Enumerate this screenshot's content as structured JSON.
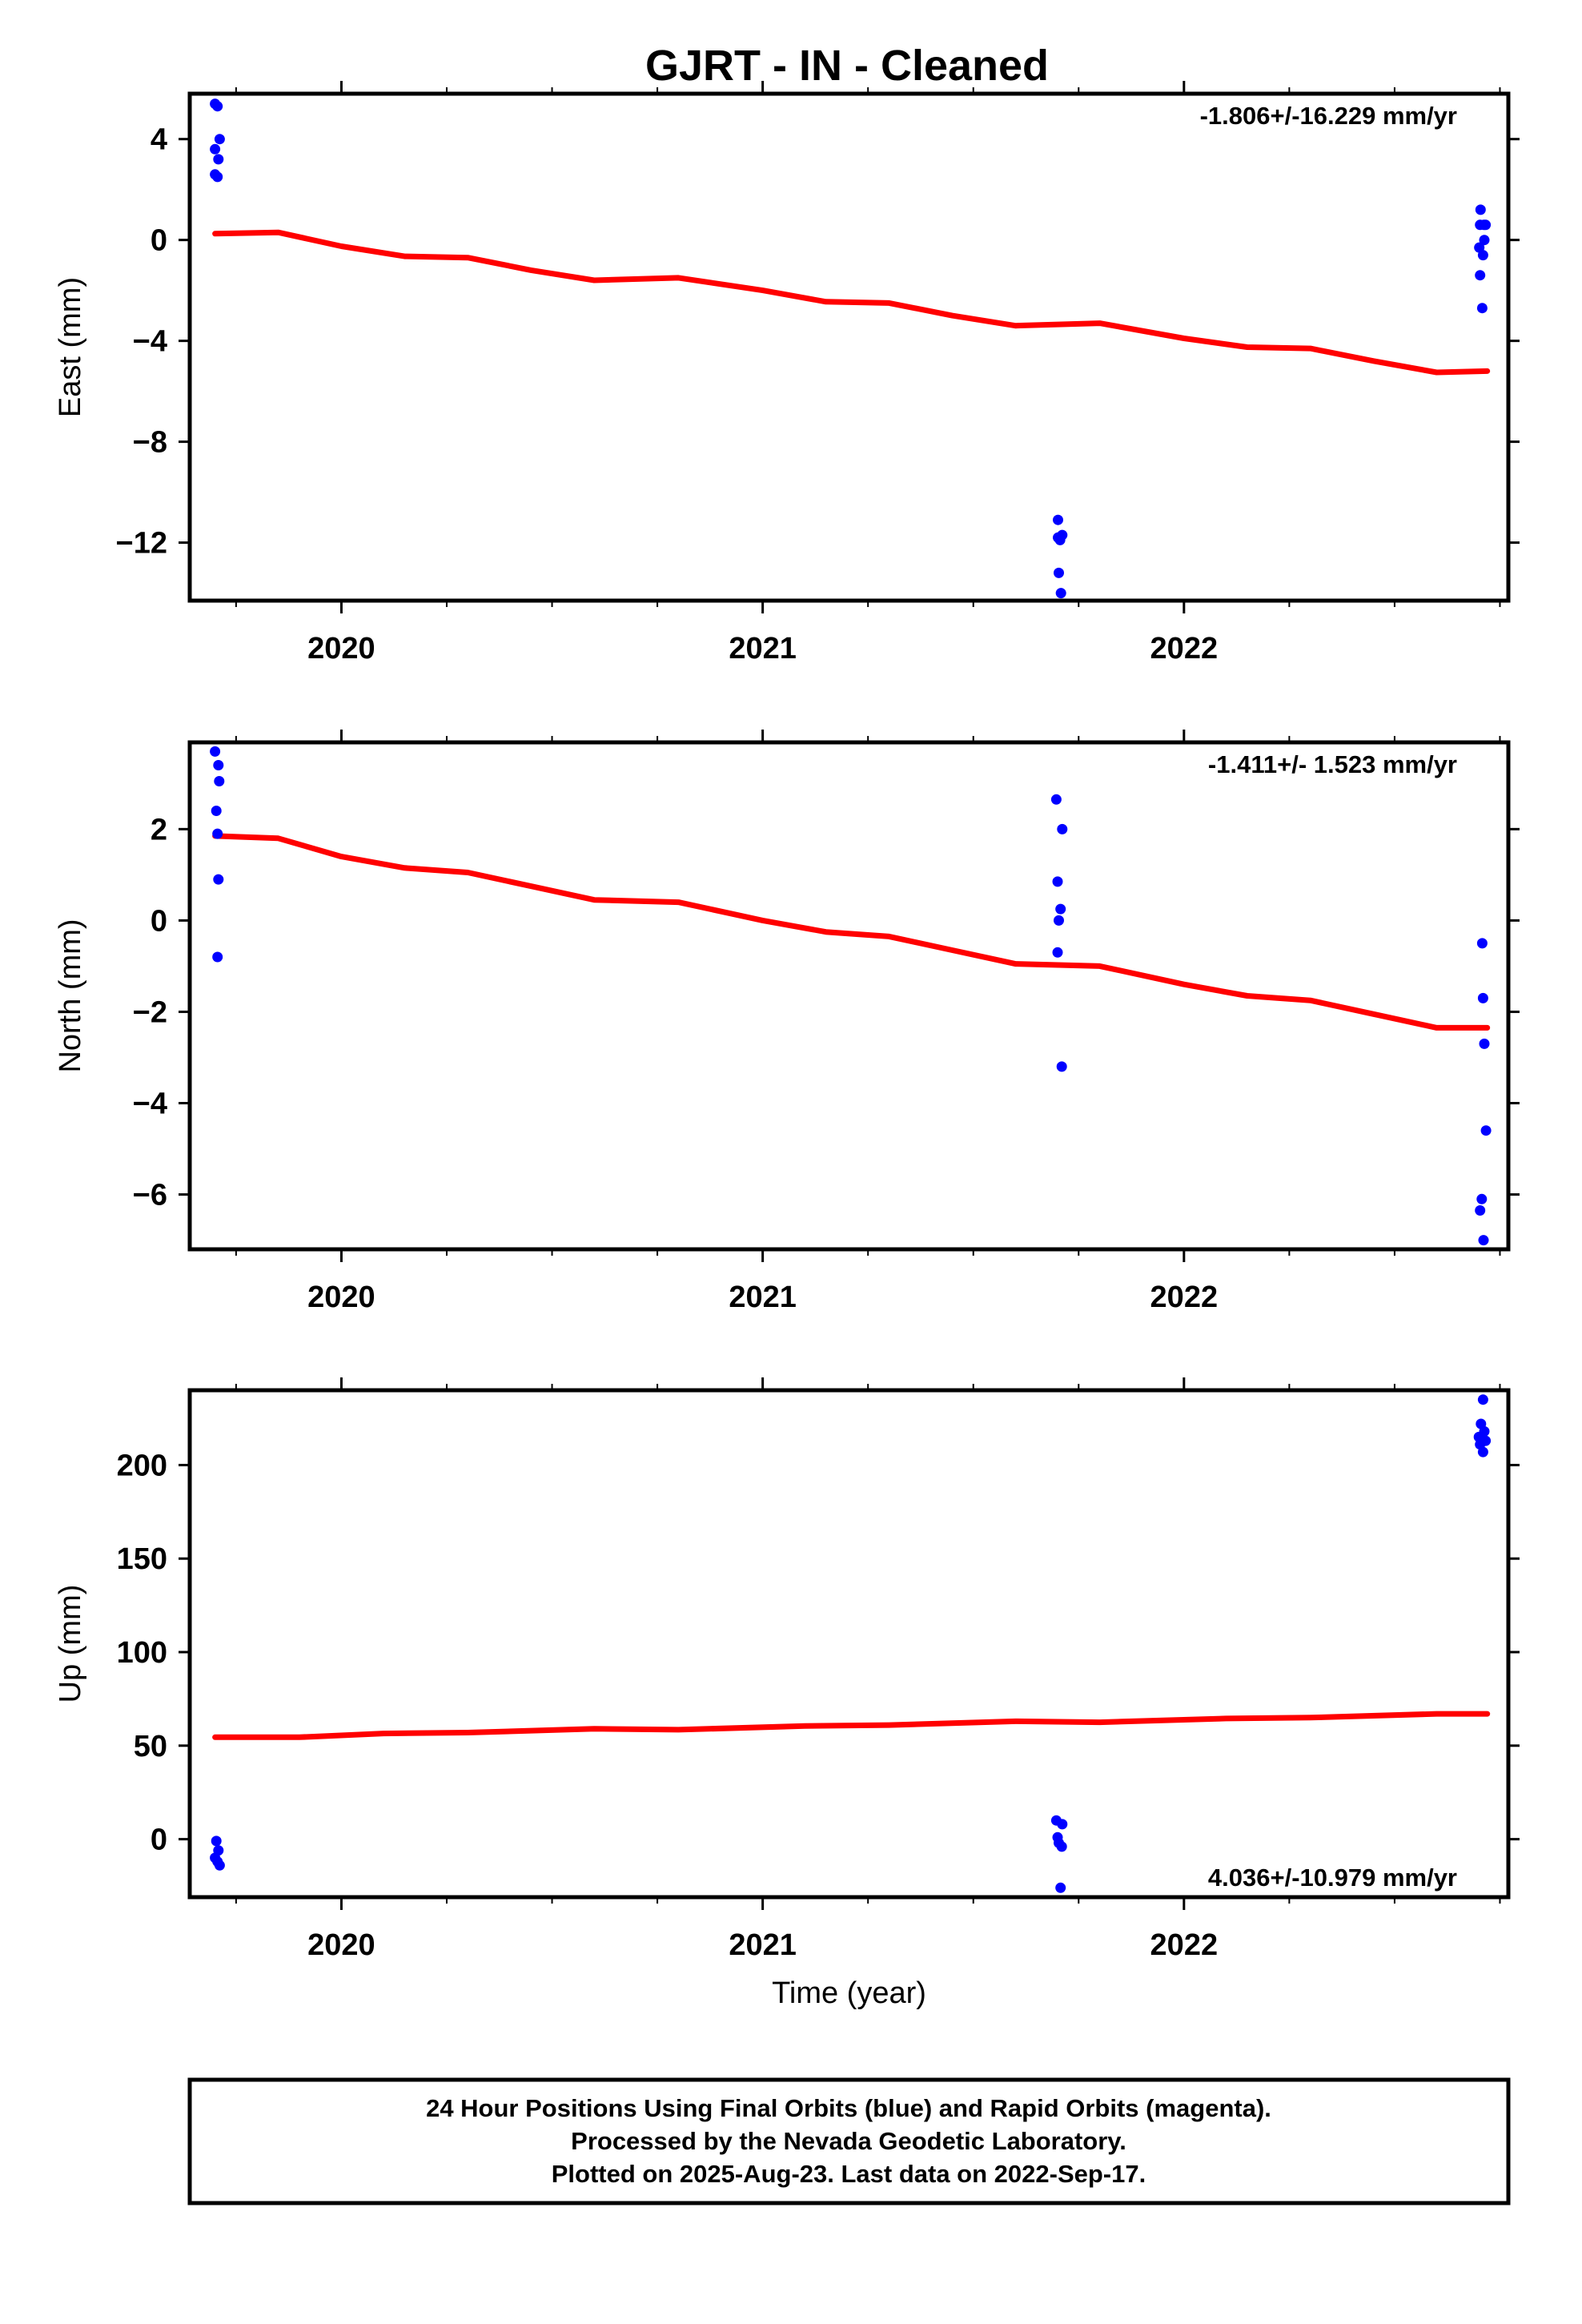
{
  "title": "GJRT  - IN - Cleaned",
  "footer": {
    "lines": [
      "24 Hour Positions Using Final Orbits (blue) and Rapid Orbits (magenta).",
      "Processed by the Nevada Geodetic Laboratory.",
      "Plotted on 2025-Aug-23. Last data on 2022-Sep-17."
    ]
  },
  "colors": {
    "final_points": "#0000ff",
    "model_line": "#ff0000",
    "frame": "#000000"
  },
  "chart_data": [
    {
      "type": "scatter",
      "ylabel": "East (mm)",
      "xlabel": "",
      "rate_text": "-1.806+/-16.229 mm/yr",
      "rate_position": "top-right",
      "xlim": [
        2019.64,
        2022.77
      ],
      "ylim": [
        -14.3,
        5.8
      ],
      "x_ticks": [
        2020,
        2021,
        2022
      ],
      "y_ticks": [
        4,
        0,
        -4,
        -8,
        -12
      ],
      "y_tick_labels": [
        "4",
        "0",
        "−4",
        "−8",
        "−12"
      ],
      "grid": false,
      "points": [
        [
          2019.7,
          5.4
        ],
        [
          2019.706,
          5.3
        ],
        [
          2019.7,
          3.6
        ],
        [
          2019.711,
          4.0
        ],
        [
          2019.708,
          3.2
        ],
        [
          2019.7,
          2.6
        ],
        [
          2019.706,
          2.5
        ],
        [
          2021.701,
          -11.1
        ],
        [
          2021.701,
          -11.8
        ],
        [
          2021.706,
          -11.9
        ],
        [
          2021.711,
          -11.7
        ],
        [
          2021.703,
          -13.2
        ],
        [
          2021.708,
          -14.0
        ],
        [
          2022.704,
          1.2
        ],
        [
          2022.703,
          0.6
        ],
        [
          2022.712,
          0.6
        ],
        [
          2022.716,
          0.6
        ],
        [
          2022.701,
          -0.3
        ],
        [
          2022.713,
          0.0
        ],
        [
          2022.71,
          -0.6
        ],
        [
          2022.703,
          -1.4
        ],
        [
          2022.708,
          -2.7
        ]
      ],
      "model": [
        [
          2019.7,
          0.25
        ],
        [
          2019.85,
          0.3
        ],
        [
          2020.0,
          -0.25
        ],
        [
          2020.15,
          -0.65
        ],
        [
          2020.3,
          -0.7
        ],
        [
          2020.45,
          -1.2
        ],
        [
          2020.6,
          -1.6
        ],
        [
          2020.8,
          -1.5
        ],
        [
          2021.0,
          -2.0
        ],
        [
          2021.15,
          -2.45
        ],
        [
          2021.3,
          -2.5
        ],
        [
          2021.45,
          -3.0
        ],
        [
          2021.6,
          -3.4
        ],
        [
          2021.8,
          -3.3
        ],
        [
          2022.0,
          -3.9
        ],
        [
          2022.15,
          -4.25
        ],
        [
          2022.3,
          -4.3
        ],
        [
          2022.45,
          -4.8
        ],
        [
          2022.6,
          -5.25
        ],
        [
          2022.72,
          -5.2
        ]
      ]
    },
    {
      "type": "scatter",
      "ylabel": "North (mm)",
      "xlabel": "",
      "rate_text": "-1.411+/- 1.523 mm/yr",
      "rate_position": "top-right",
      "xlim": [
        2019.64,
        2022.77
      ],
      "ylim": [
        -7.2,
        3.9
      ],
      "x_ticks": [
        2020,
        2021,
        2022
      ],
      "y_ticks": [
        2,
        0,
        -2,
        -4,
        -6
      ],
      "y_tick_labels": [
        "2",
        "0",
        "−2",
        "−4",
        "−6"
      ],
      "grid": false,
      "points": [
        [
          2019.7,
          3.7
        ],
        [
          2019.708,
          3.4
        ],
        [
          2019.71,
          3.05
        ],
        [
          2019.703,
          2.4
        ],
        [
          2019.706,
          1.9
        ],
        [
          2019.708,
          0.9
        ],
        [
          2019.706,
          -0.8
        ],
        [
          2021.697,
          2.65
        ],
        [
          2021.711,
          2.0
        ],
        [
          2021.7,
          0.85
        ],
        [
          2021.707,
          0.25
        ],
        [
          2021.703,
          0.0
        ],
        [
          2021.7,
          -0.7
        ],
        [
          2021.71,
          -3.2
        ],
        [
          2022.708,
          -0.5
        ],
        [
          2022.71,
          -1.7
        ],
        [
          2022.713,
          -2.7
        ],
        [
          2022.717,
          -4.6
        ],
        [
          2022.707,
          -6.1
        ],
        [
          2022.703,
          -6.35
        ],
        [
          2022.711,
          -7.0
        ]
      ],
      "model": [
        [
          2019.7,
          1.85
        ],
        [
          2019.85,
          1.8
        ],
        [
          2020.0,
          1.4
        ],
        [
          2020.15,
          1.15
        ],
        [
          2020.3,
          1.05
        ],
        [
          2020.45,
          0.75
        ],
        [
          2020.6,
          0.45
        ],
        [
          2020.8,
          0.4
        ],
        [
          2021.0,
          0.0
        ],
        [
          2021.15,
          -0.25
        ],
        [
          2021.3,
          -0.35
        ],
        [
          2021.45,
          -0.65
        ],
        [
          2021.6,
          -0.95
        ],
        [
          2021.8,
          -1.0
        ],
        [
          2022.0,
          -1.4
        ],
        [
          2022.15,
          -1.65
        ],
        [
          2022.3,
          -1.75
        ],
        [
          2022.45,
          -2.05
        ],
        [
          2022.6,
          -2.35
        ],
        [
          2022.72,
          -2.35
        ]
      ]
    },
    {
      "type": "scatter",
      "ylabel": "Up (mm)",
      "xlabel": "Time (year)",
      "rate_text": "4.036+/-10.979 mm/yr",
      "rate_position": "bottom-right",
      "xlim": [
        2019.64,
        2022.77
      ],
      "ylim": [
        -31,
        240
      ],
      "x_ticks": [
        2020,
        2021,
        2022
      ],
      "y_ticks": [
        200,
        150,
        100,
        50,
        0
      ],
      "y_tick_labels": [
        "200",
        "150",
        "100",
        "50",
        "0"
      ],
      "grid": false,
      "points": [
        [
          2019.703,
          -1.0
        ],
        [
          2019.708,
          -6.0
        ],
        [
          2019.7,
          -10.0
        ],
        [
          2019.706,
          -12.0
        ],
        [
          2019.711,
          -14.0
        ],
        [
          2021.697,
          10.0
        ],
        [
          2021.711,
          8.0
        ],
        [
          2021.7,
          1.0
        ],
        [
          2021.703,
          -2.0
        ],
        [
          2021.71,
          -4.0
        ],
        [
          2021.707,
          -26.0
        ],
        [
          2022.71,
          235.0
        ],
        [
          2022.705,
          222.0
        ],
        [
          2022.713,
          218.0
        ],
        [
          2022.7,
          215.0
        ],
        [
          2022.716,
          213.0
        ],
        [
          2022.703,
          211.0
        ],
        [
          2022.71,
          207.0
        ]
      ],
      "model": [
        [
          2019.7,
          54.5
        ],
        [
          2019.9,
          54.5
        ],
        [
          2020.1,
          56.5
        ],
        [
          2020.3,
          57.0
        ],
        [
          2020.6,
          59.0
        ],
        [
          2020.8,
          58.5
        ],
        [
          2021.1,
          60.5
        ],
        [
          2021.3,
          61.0
        ],
        [
          2021.6,
          63.0
        ],
        [
          2021.8,
          62.5
        ],
        [
          2022.1,
          64.5
        ],
        [
          2022.3,
          65.0
        ],
        [
          2022.6,
          67.0
        ],
        [
          2022.72,
          67.0
        ]
      ]
    }
  ]
}
